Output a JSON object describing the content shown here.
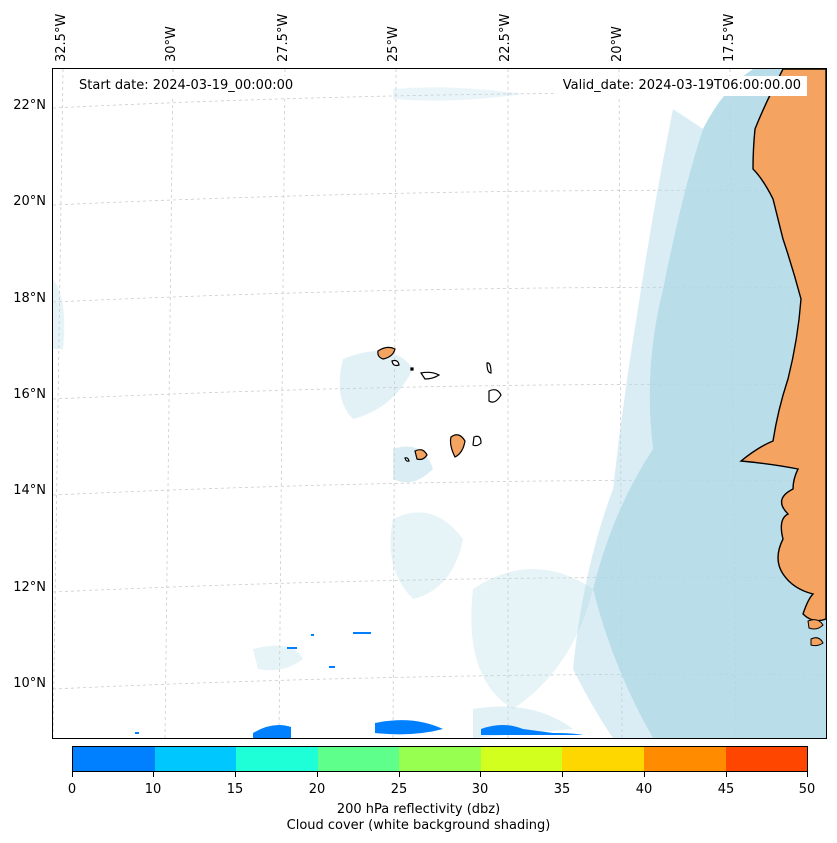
{
  "header": {
    "start_date": "Start date: 2024-03-19_00:00:00",
    "valid_date": "Valid_date: 2024-03-19T06:00:00.00"
  },
  "lat_labels": [
    "22°N",
    "20°N",
    "18°N",
    "16°N",
    "14°N",
    "12°N",
    "10°N"
  ],
  "lon_labels": [
    "32.5°W",
    "30°W",
    "27.5°W",
    "25°W",
    "22.5°W",
    "20°W",
    "17.5°W"
  ],
  "colorbar": {
    "ticks": [
      "0",
      "10",
      "15",
      "20",
      "25",
      "30",
      "35",
      "40",
      "45",
      "50"
    ],
    "colors": [
      "#0080ff",
      "#00c8ff",
      "#1effd7",
      "#5fff8c",
      "#96ff50",
      "#d2ff1e",
      "#ffd700",
      "#ff8c00",
      "#ff4600"
    ],
    "label_line1": "200 hPa reflectivity (dbz)",
    "label_line2": "Cloud cover (white background shading)"
  },
  "colors": {
    "land": "#f4a460",
    "cloud": "#add8e6",
    "echo": "#0080ff"
  }
}
